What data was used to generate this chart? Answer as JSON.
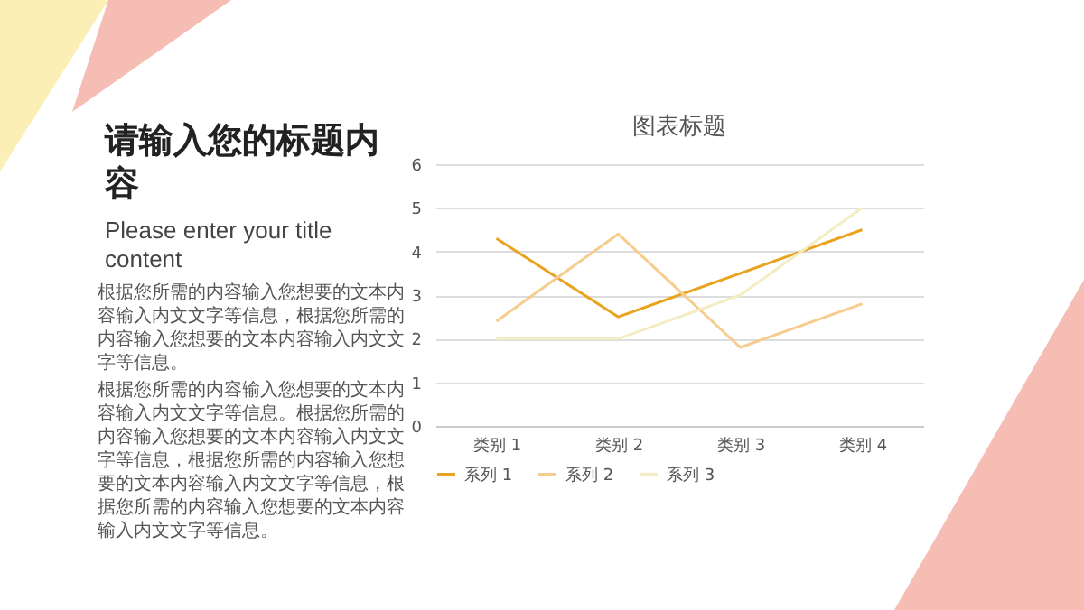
{
  "chart_data": {
    "type": "line",
    "title": "图表标题",
    "categories": [
      "类别 1",
      "类别 2",
      "类别 3",
      "类别 4"
    ],
    "series": [
      {
        "name": "系列 1",
        "color": "#e9a31e",
        "values": [
          4.3,
          2.5,
          3.5,
          4.5
        ]
      },
      {
        "name": "系列 2",
        "color": "#f6cd8e",
        "values": [
          2.4,
          4.4,
          1.8,
          2.8
        ]
      },
      {
        "name": "系列 3",
        "color": "#f4edc4",
        "values": [
          2,
          2,
          3,
          5
        ]
      }
    ],
    "ylim": [
      0,
      6
    ],
    "yticks": [
      0,
      1,
      2,
      3,
      4,
      5,
      6
    ],
    "grid": "y",
    "legend": "bottom",
    "marker": "none",
    "line_style": "solid",
    "annotations": [
      "请输入您的标题内容",
      "Please enter your title content",
      "根据您所需的内容输入您想要的文本内容输入内文文字等信息，根据您所需的内容输入您想要的文本内容输入内文文字等信息。",
      "根据您所需的内容输入您想要的文本内容输入内文文字等信息。根据您所需的内容输入您想要的文本内容输入内文文字等信息，根据您所需的内容输入您想要的文本内容输入内文文字等信息，根据您所需的内容输入您想要的文本内容输入内文文字等信息。"
    ]
  }
}
